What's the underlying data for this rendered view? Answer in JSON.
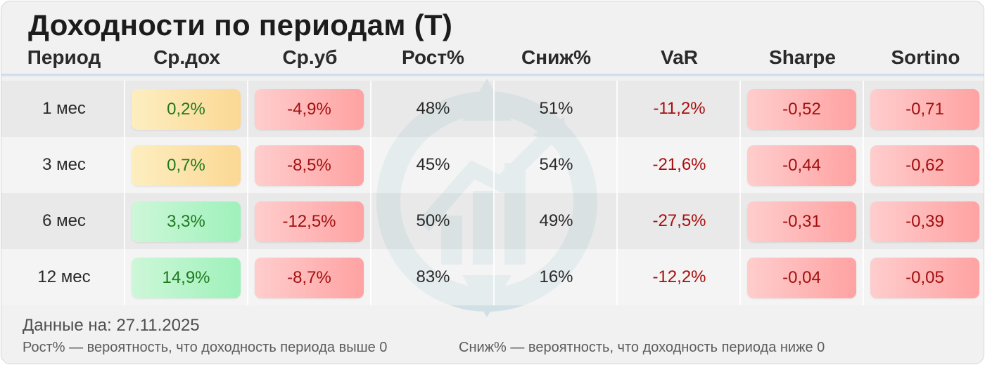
{
  "title": "Доходности по периодам (T)",
  "columns": [
    "Период",
    "Ср.дох",
    "Ср.уб",
    "Рост%",
    "Сниж%",
    "VaR",
    "Sharpe",
    "Sortino"
  ],
  "rows": [
    {
      "period": "1 мес",
      "avg_gain": "0,2%",
      "avg_loss": "-4,9%",
      "up": "48%",
      "down": "51%",
      "var": "-11,2%",
      "sharpe": "-0,52",
      "sortino": "-0,71",
      "gain_tone": "yellow"
    },
    {
      "period": "3 мес",
      "avg_gain": "0,7%",
      "avg_loss": "-8,5%",
      "up": "45%",
      "down": "54%",
      "var": "-21,6%",
      "sharpe": "-0,44",
      "sortino": "-0,62",
      "gain_tone": "yellow"
    },
    {
      "period": "6 мес",
      "avg_gain": "3,3%",
      "avg_loss": "-12,5%",
      "up": "50%",
      "down": "49%",
      "var": "-27,5%",
      "sharpe": "-0,31",
      "sortino": "-0,39",
      "gain_tone": "green"
    },
    {
      "period": "12 мес",
      "avg_gain": "14,9%",
      "avg_loss": "-8,7%",
      "up": "83%",
      "down": "16%",
      "var": "-12,2%",
      "sharpe": "-0,04",
      "sortino": "-0,05",
      "gain_tone": "green"
    }
  ],
  "footer": {
    "date": "Данные на: 27.11.2025",
    "note_up": "Рост% — вероятность, что доходность периода выше 0",
    "note_down": "Сниж% — вероятность, что доходность периода ниже 0"
  },
  "colors": {
    "positive_bg": "#9ff1bb",
    "neutral_bg": "#fbd894",
    "negative_bg": "#ffa2a2",
    "positive_text": "#1f7a1f",
    "negative_text": "#a11010"
  },
  "icons": {
    "watermark": "compass-chart-logo-icon"
  }
}
